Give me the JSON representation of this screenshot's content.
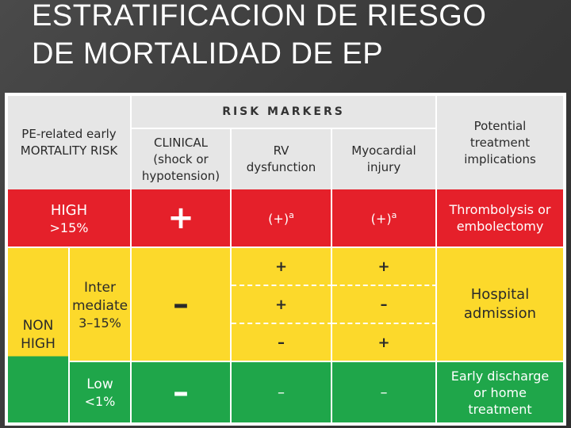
{
  "slide": {
    "title": "ESTRATIFICACION DE RIESGO DE MORTALIDAD DE EP"
  },
  "table": {
    "risk_markers_label": "RISK MARKERS",
    "col_risk": "PE-related early MORTALITY RISK",
    "col_clinical": "CLINICAL (shock or hypotension)",
    "col_rv": "RV dysfunction",
    "col_injury": "Myocardial injury",
    "col_treatment": "Potential treatment implications",
    "high": {
      "label": "HIGH",
      "pct": ">15%",
      "clinical": "+",
      "rv": "(+)",
      "rv_sup": "a",
      "injury": "(+)",
      "injury_sup": "a",
      "treatment": "Thrombolysis or embolectomy"
    },
    "nonhigh": {
      "label": "NON HIGH",
      "intermediate": {
        "label": "Inter mediate",
        "pct": "3–15%",
        "clinical": "–",
        "rows": [
          {
            "rv": "+",
            "injury": "+"
          },
          {
            "rv": "+",
            "injury": "–"
          },
          {
            "rv": "–",
            "injury": "+"
          }
        ],
        "treatment": "Hospital admission"
      },
      "low": {
        "label": "Low",
        "pct": "<1%",
        "clinical": "–",
        "rv": "–",
        "injury": "–",
        "treatment": "Early discharge or home treatment"
      }
    }
  },
  "colors": {
    "high": "#e5202a",
    "intermediate": "#fcd92b",
    "low": "#1fa64a",
    "header": "#e6e6e6"
  }
}
